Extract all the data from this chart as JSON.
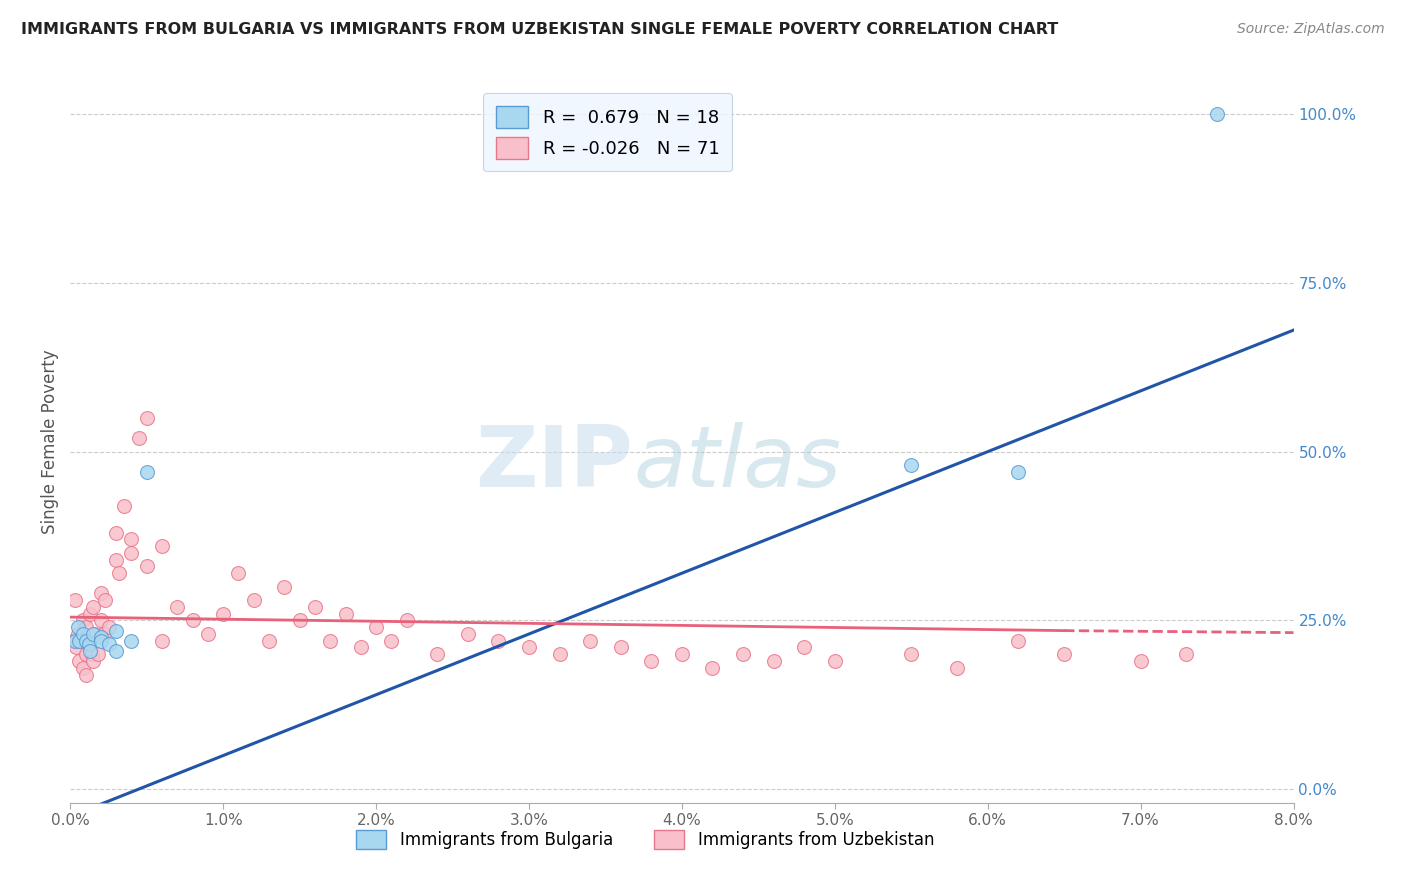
{
  "title": "IMMIGRANTS FROM BULGARIA VS IMMIGRANTS FROM UZBEKISTAN SINGLE FEMALE POVERTY CORRELATION CHART",
  "source": "Source: ZipAtlas.com",
  "ylabel": "Single Female Poverty",
  "xlim": [
    0.0,
    0.08
  ],
  "ylim": [
    -0.02,
    1.05
  ],
  "yticks_right": [
    0.0,
    0.25,
    0.5,
    0.75,
    1.0
  ],
  "ytick_right_labels": [
    "0.0%",
    "25.0%",
    "50.0%",
    "75.0%",
    "100.0%"
  ],
  "xticks": [
    0.0,
    0.01,
    0.02,
    0.03,
    0.04,
    0.05,
    0.06,
    0.07,
    0.08
  ],
  "xtick_labels": [
    "0.0%",
    "1.0%",
    "2.0%",
    "3.0%",
    "4.0%",
    "5.0%",
    "6.0%",
    "7.0%",
    "8.0%"
  ],
  "bulgaria_color": "#A8D8F0",
  "uzbekistan_color": "#F9C0CB",
  "bulgaria_edge_color": "#5B9BD5",
  "uzbekistan_edge_color": "#E8768A",
  "trend_bulgaria_color": "#2155A8",
  "trend_uzbekistan_color": "#E8607A",
  "R_bulgaria": 0.679,
  "N_bulgaria": 18,
  "R_uzbekistan": -0.026,
  "N_uzbekistan": 71,
  "legend_box_color": "#EEF6FF",
  "legend_box_edge": "#BBCCDD",
  "watermark_zip": "ZIP",
  "watermark_atlas": "atlas",
  "marker_size": 100,
  "bulgaria_x": [
    0.0003,
    0.0005,
    0.0006,
    0.0008,
    0.001,
    0.0012,
    0.0013,
    0.0015,
    0.002,
    0.002,
    0.0025,
    0.003,
    0.003,
    0.004,
    0.005,
    0.055,
    0.062,
    0.075
  ],
  "bulgaria_y": [
    0.22,
    0.24,
    0.22,
    0.23,
    0.22,
    0.215,
    0.205,
    0.23,
    0.225,
    0.22,
    0.215,
    0.235,
    0.205,
    0.22,
    0.47,
    0.48,
    0.47,
    1.0
  ],
  "uzbekistan_x": [
    0.0002,
    0.0003,
    0.0004,
    0.0005,
    0.0006,
    0.0007,
    0.0008,
    0.0008,
    0.0009,
    0.001,
    0.001,
    0.001,
    0.0012,
    0.0013,
    0.0014,
    0.0015,
    0.0015,
    0.0016,
    0.0018,
    0.002,
    0.002,
    0.0022,
    0.0023,
    0.0025,
    0.003,
    0.003,
    0.0032,
    0.0035,
    0.004,
    0.004,
    0.0045,
    0.005,
    0.005,
    0.006,
    0.006,
    0.007,
    0.008,
    0.009,
    0.01,
    0.011,
    0.012,
    0.013,
    0.014,
    0.015,
    0.016,
    0.017,
    0.018,
    0.019,
    0.02,
    0.021,
    0.022,
    0.024,
    0.026,
    0.028,
    0.03,
    0.032,
    0.034,
    0.036,
    0.038,
    0.04,
    0.042,
    0.044,
    0.046,
    0.048,
    0.05,
    0.055,
    0.058,
    0.062,
    0.065,
    0.07,
    0.073
  ],
  "uzbekistan_y": [
    0.22,
    0.28,
    0.21,
    0.23,
    0.19,
    0.22,
    0.18,
    0.25,
    0.22,
    0.2,
    0.24,
    0.17,
    0.22,
    0.26,
    0.2,
    0.19,
    0.27,
    0.23,
    0.2,
    0.25,
    0.29,
    0.23,
    0.28,
    0.24,
    0.34,
    0.38,
    0.32,
    0.42,
    0.37,
    0.35,
    0.52,
    0.33,
    0.55,
    0.22,
    0.36,
    0.27,
    0.25,
    0.23,
    0.26,
    0.32,
    0.28,
    0.22,
    0.3,
    0.25,
    0.27,
    0.22,
    0.26,
    0.21,
    0.24,
    0.22,
    0.25,
    0.2,
    0.23,
    0.22,
    0.21,
    0.2,
    0.22,
    0.21,
    0.19,
    0.2,
    0.18,
    0.2,
    0.19,
    0.21,
    0.19,
    0.2,
    0.18,
    0.22,
    0.2,
    0.19,
    0.2
  ],
  "trend_blue_x0": 0.0,
  "trend_blue_y0": -0.04,
  "trend_blue_x1": 0.08,
  "trend_blue_y1": 0.68,
  "trend_pink_x0": 0.0,
  "trend_pink_y0": 0.255,
  "trend_pink_x1": 0.065,
  "trend_pink_y1": 0.235,
  "trend_pink_dash_x0": 0.065,
  "trend_pink_dash_y0": 0.235,
  "trend_pink_dash_x1": 0.08,
  "trend_pink_dash_y1": 0.232
}
